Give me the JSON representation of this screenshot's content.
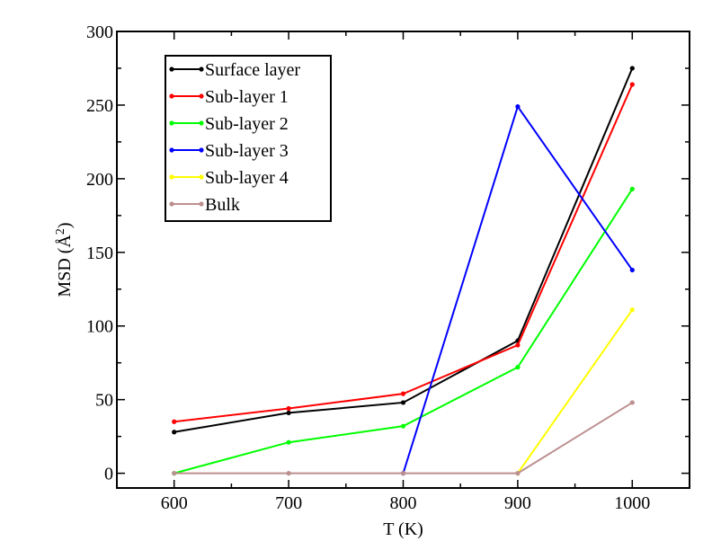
{
  "chart_data": {
    "type": "line",
    "x": [
      600,
      700,
      800,
      900,
      1000
    ],
    "xlabel": "T (K)",
    "ylabel": "MSD (Å²)",
    "ylabel_parts": {
      "main": "MSD (",
      "letter": "Å",
      "sup": "2",
      "close": ")"
    },
    "xlim": [
      550,
      1050
    ],
    "ylim": [
      -10,
      300
    ],
    "xticks": [
      600,
      700,
      800,
      900,
      1000
    ],
    "yticks": [
      0,
      50,
      100,
      150,
      200,
      250,
      300
    ],
    "grid": false,
    "legend_position": "top-left",
    "series": [
      {
        "name": "Surface layer",
        "color": "#000000",
        "values": [
          28,
          41,
          48,
          90,
          275
        ]
      },
      {
        "name": "Sub-layer 1",
        "color": "#ff0000",
        "values": [
          35,
          44,
          54,
          87,
          264
        ]
      },
      {
        "name": "Sub-layer 2",
        "color": "#00ff00",
        "values": [
          0,
          21,
          32,
          72,
          193
        ]
      },
      {
        "name": "Sub-layer 3",
        "color": "#0000ff",
        "values": [
          null,
          null,
          0,
          249,
          138
        ]
      },
      {
        "name": "Sub-layer 4",
        "color": "#ffff00",
        "values": [
          null,
          null,
          null,
          0,
          111
        ]
      },
      {
        "name": "Bulk",
        "color": "#bc8f8f",
        "values": [
          0,
          0,
          0,
          0,
          48
        ]
      }
    ]
  }
}
